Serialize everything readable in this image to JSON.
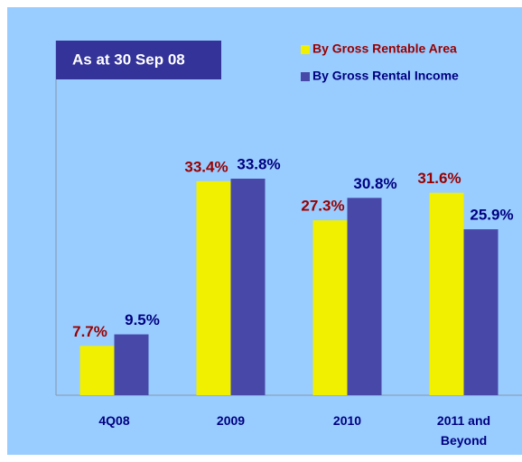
{
  "chart_data": {
    "type": "bar",
    "annotation": "As at 30 Sep 08",
    "categories": [
      "4Q08",
      "2009",
      "2010",
      "2011 and Beyond"
    ],
    "series": [
      {
        "name": "By Gross Rentable Area",
        "color": "#f0f000",
        "label_color": "#990000",
        "values": [
          7.7,
          33.4,
          27.3,
          31.6
        ],
        "value_labels": [
          "7.7%",
          "33.4%",
          "27.3%",
          "31.6%"
        ]
      },
      {
        "name": "By Gross Rental Income",
        "color": "#4848a8",
        "label_color": "#000080",
        "values": [
          9.5,
          33.8,
          30.8,
          25.9
        ],
        "value_labels": [
          "9.5%",
          "33.8%",
          "30.8%",
          "25.9%"
        ]
      }
    ],
    "legend": "top-right"
  }
}
